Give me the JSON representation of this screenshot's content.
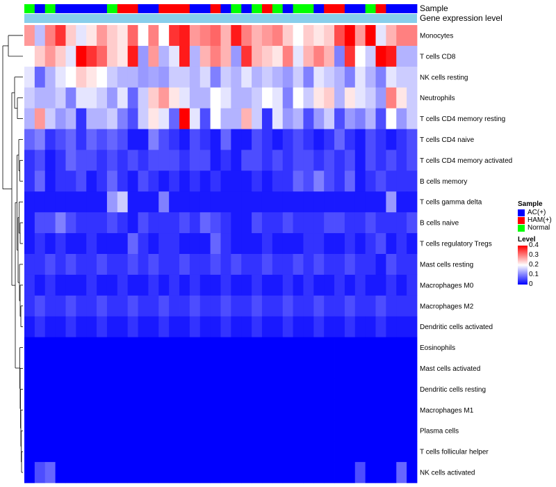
{
  "chart_data": {
    "type": "heatmap",
    "title": "",
    "annotation_tracks": [
      {
        "name": "Sample",
        "label": "Sample"
      },
      {
        "name": "Gene expression level",
        "label": "Gene expression level"
      }
    ],
    "rows": [
      "Monocytes",
      "T cells CD8",
      "NK cells resting",
      "Neutrophils",
      "T cells CD4 memory resting",
      "T cells CD4 naive",
      "T cells CD4 memory activated",
      "B cells memory",
      "T cells gamma delta",
      "B cells naive",
      "T cells regulatory  Tregs",
      "Mast cells resting",
      "Macrophages M0",
      "Macrophages M2",
      "Dendritic cells activated",
      "Eosinophils",
      "Mast cells activated",
      "Dendritic cells resting",
      "Macrophages M1",
      "Plasma cells",
      "T cells follicular helper",
      "NK cells activated"
    ],
    "sample_groups": [
      "Normal",
      "AC(+)",
      "Normal",
      "AC(+)",
      "AC(+)",
      "AC(+)",
      "AC(+)",
      "AC(+)",
      "Normal",
      "HAM(+)",
      "HAM(+)",
      "AC(+)",
      "AC(+)",
      "HAM(+)",
      "HAM(+)",
      "HAM(+)",
      "AC(+)",
      "AC(+)",
      "HAM(+)",
      "AC(+)",
      "Normal",
      "AC(+)",
      "Normal",
      "HAM(+)",
      "Normal",
      "AC(+)",
      "Normal",
      "Normal",
      "AC(+)",
      "HAM(+)",
      "HAM(+)",
      "AC(+)",
      "AC(+)",
      "Normal",
      "HAM(+)",
      "AC(+)",
      "AC(+)",
      "AC(+)"
    ],
    "values": [
      [
        0.28,
        0.15,
        0.3,
        0.36,
        0.24,
        0.18,
        0.22,
        0.28,
        0.24,
        0.22,
        0.32,
        0.2,
        0.3,
        0.2,
        0.36,
        0.38,
        0.28,
        0.3,
        0.32,
        0.26,
        0.38,
        0.3,
        0.26,
        0.28,
        0.3,
        0.24,
        0.2,
        0.24,
        0.22,
        0.24,
        0.34,
        0.4,
        0.28,
        0.4,
        0.18,
        0.26,
        0.3,
        0.3
      ],
      [
        0.2,
        0.24,
        0.28,
        0.24,
        0.18,
        0.4,
        0.36,
        0.32,
        0.24,
        0.22,
        0.38,
        0.12,
        0.28,
        0.14,
        0.18,
        0.38,
        0.14,
        0.26,
        0.3,
        0.26,
        0.12,
        0.36,
        0.26,
        0.24,
        0.22,
        0.3,
        0.18,
        0.26,
        0.3,
        0.26,
        0.1,
        0.36,
        0.2,
        0.16,
        0.4,
        0.38,
        0.14,
        0.14
      ],
      [
        0.18,
        0.08,
        0.14,
        0.18,
        0.2,
        0.24,
        0.22,
        0.2,
        0.16,
        0.14,
        0.14,
        0.12,
        0.13,
        0.12,
        0.16,
        0.16,
        0.14,
        0.17,
        0.1,
        0.16,
        0.14,
        0.18,
        0.14,
        0.16,
        0.14,
        0.12,
        0.16,
        0.1,
        0.18,
        0.16,
        0.14,
        0.1,
        0.18,
        0.14,
        0.1,
        0.18,
        0.16,
        0.16
      ],
      [
        0.16,
        0.14,
        0.14,
        0.16,
        0.1,
        0.18,
        0.18,
        0.16,
        0.12,
        0.18,
        0.08,
        0.16,
        0.24,
        0.28,
        0.22,
        0.18,
        0.14,
        0.14,
        0.2,
        0.18,
        0.14,
        0.14,
        0.16,
        0.2,
        0.18,
        0.1,
        0.2,
        0.16,
        0.22,
        0.24,
        0.14,
        0.22,
        0.18,
        0.16,
        0.12,
        0.3,
        0.22,
        0.16
      ],
      [
        0.14,
        0.28,
        0.16,
        0.12,
        0.14,
        0.04,
        0.14,
        0.14,
        0.16,
        0.1,
        0.06,
        0.16,
        0.22,
        0.18,
        0.08,
        0.4,
        0.18,
        0.06,
        0.2,
        0.14,
        0.14,
        0.26,
        0.16,
        0.04,
        0.18,
        0.12,
        0.14,
        0.06,
        0.12,
        0.16,
        0.06,
        0.12,
        0.1,
        0.14,
        0.06,
        0.2,
        0.12,
        0.16
      ],
      [
        0.08,
        0.1,
        0.04,
        0.06,
        0.08,
        0.04,
        0.08,
        0.06,
        0.08,
        0.06,
        0.02,
        0.02,
        0.1,
        0.06,
        0.04,
        0.02,
        0.06,
        0.04,
        0.02,
        0.08,
        0.02,
        0.02,
        0.06,
        0.04,
        0.02,
        0.04,
        0.06,
        0.04,
        0.02,
        0.04,
        0.08,
        0.04,
        0.02,
        0.06,
        0.04,
        0.02,
        0.04,
        0.06
      ],
      [
        0.04,
        0.06,
        0.02,
        0.04,
        0.08,
        0.06,
        0.06,
        0.04,
        0.06,
        0.04,
        0.06,
        0.04,
        0.06,
        0.06,
        0.06,
        0.04,
        0.06,
        0.06,
        0.02,
        0.04,
        0.02,
        0.06,
        0.06,
        0.04,
        0.06,
        0.04,
        0.06,
        0.06,
        0.04,
        0.06,
        0.04,
        0.06,
        0.02,
        0.06,
        0.04,
        0.06,
        0.04,
        0.06
      ],
      [
        0.04,
        0.08,
        0.02,
        0.04,
        0.04,
        0.06,
        0.02,
        0.04,
        0.08,
        0.04,
        0.02,
        0.06,
        0.04,
        0.02,
        0.04,
        0.02,
        0.04,
        0.02,
        0.04,
        0.02,
        0.02,
        0.02,
        0.04,
        0.02,
        0.04,
        0.04,
        0.08,
        0.06,
        0.1,
        0.06,
        0.04,
        0.08,
        0.02,
        0.04,
        0.06,
        0.04,
        0.04,
        0.04
      ],
      [
        0.02,
        0.02,
        0.02,
        0.02,
        0.02,
        0.02,
        0.02,
        0.02,
        0.12,
        0.16,
        0.02,
        0.02,
        0.02,
        0.1,
        0.02,
        0.02,
        0.02,
        0.02,
        0.02,
        0.02,
        0.02,
        0.02,
        0.02,
        0.02,
        0.02,
        0.02,
        0.02,
        0.02,
        0.02,
        0.02,
        0.02,
        0.02,
        0.02,
        0.02,
        0.02,
        0.12,
        0.02,
        0.02
      ],
      [
        0.02,
        0.06,
        0.06,
        0.1,
        0.06,
        0.04,
        0.04,
        0.04,
        0.06,
        0.04,
        0.02,
        0.06,
        0.04,
        0.04,
        0.04,
        0.06,
        0.04,
        0.08,
        0.06,
        0.04,
        0.02,
        0.02,
        0.06,
        0.04,
        0.04,
        0.06,
        0.04,
        0.04,
        0.04,
        0.06,
        0.06,
        0.04,
        0.04,
        0.06,
        0.04,
        0.04,
        0.04,
        0.06
      ],
      [
        0.02,
        0.04,
        0.02,
        0.04,
        0.02,
        0.02,
        0.04,
        0.02,
        0.02,
        0.02,
        0.08,
        0.04,
        0.02,
        0.04,
        0.04,
        0.02,
        0.02,
        0.02,
        0.08,
        0.04,
        0.02,
        0.02,
        0.02,
        0.04,
        0.02,
        0.02,
        0.02,
        0.04,
        0.04,
        0.02,
        0.02,
        0.04,
        0.02,
        0.04,
        0.06,
        0.02,
        0.04,
        0.02
      ],
      [
        0.04,
        0.04,
        0.06,
        0.04,
        0.06,
        0.04,
        0.04,
        0.06,
        0.04,
        0.04,
        0.06,
        0.04,
        0.06,
        0.04,
        0.04,
        0.06,
        0.04,
        0.04,
        0.06,
        0.04,
        0.06,
        0.04,
        0.04,
        0.06,
        0.04,
        0.04,
        0.06,
        0.04,
        0.06,
        0.04,
        0.04,
        0.06,
        0.04,
        0.04,
        0.02,
        0.06,
        0.04,
        0.04
      ],
      [
        0.04,
        0.02,
        0.04,
        0.02,
        0.02,
        0.02,
        0.04,
        0.02,
        0.02,
        0.04,
        0.02,
        0.02,
        0.04,
        0.02,
        0.04,
        0.02,
        0.04,
        0.02,
        0.02,
        0.04,
        0.02,
        0.02,
        0.04,
        0.02,
        0.02,
        0.04,
        0.02,
        0.04,
        0.02,
        0.02,
        0.04,
        0.02,
        0.04,
        0.02,
        0.02,
        0.04,
        0.02,
        0.04
      ],
      [
        0.04,
        0.06,
        0.04,
        0.04,
        0.06,
        0.04,
        0.04,
        0.06,
        0.04,
        0.04,
        0.06,
        0.04,
        0.04,
        0.06,
        0.04,
        0.04,
        0.06,
        0.04,
        0.04,
        0.06,
        0.04,
        0.04,
        0.06,
        0.04,
        0.04,
        0.06,
        0.04,
        0.04,
        0.06,
        0.04,
        0.04,
        0.06,
        0.04,
        0.04,
        0.06,
        0.04,
        0.04,
        0.04
      ],
      [
        0.02,
        0.04,
        0.02,
        0.02,
        0.04,
        0.02,
        0.02,
        0.04,
        0.02,
        0.02,
        0.04,
        0.02,
        0.02,
        0.04,
        0.02,
        0.02,
        0.04,
        0.02,
        0.02,
        0.04,
        0.02,
        0.02,
        0.04,
        0.02,
        0.02,
        0.04,
        0.02,
        0.02,
        0.04,
        0.02,
        0.02,
        0.04,
        0.02,
        0.02,
        0.04,
        0.02,
        0.02,
        0.02
      ],
      [
        0.0,
        0.0,
        0.0,
        0.0,
        0.0,
        0.0,
        0.0,
        0.0,
        0.0,
        0.0,
        0.0,
        0.0,
        0.0,
        0.0,
        0.0,
        0.0,
        0.0,
        0.0,
        0.0,
        0.0,
        0.0,
        0.0,
        0.0,
        0.0,
        0.0,
        0.0,
        0.0,
        0.0,
        0.0,
        0.0,
        0.0,
        0.0,
        0.0,
        0.0,
        0.0,
        0.0,
        0.0,
        0.0
      ],
      [
        0.0,
        0.0,
        0.0,
        0.0,
        0.0,
        0.0,
        0.0,
        0.0,
        0.0,
        0.0,
        0.0,
        0.0,
        0.0,
        0.0,
        0.0,
        0.0,
        0.0,
        0.0,
        0.0,
        0.0,
        0.0,
        0.0,
        0.0,
        0.0,
        0.0,
        0.0,
        0.0,
        0.0,
        0.0,
        0.0,
        0.0,
        0.0,
        0.0,
        0.0,
        0.0,
        0.0,
        0.0,
        0.0
      ],
      [
        0.0,
        0.0,
        0.0,
        0.0,
        0.0,
        0.0,
        0.0,
        0.0,
        0.0,
        0.0,
        0.0,
        0.0,
        0.0,
        0.0,
        0.0,
        0.0,
        0.0,
        0.0,
        0.0,
        0.0,
        0.0,
        0.0,
        0.0,
        0.0,
        0.0,
        0.0,
        0.0,
        0.0,
        0.0,
        0.0,
        0.0,
        0.0,
        0.0,
        0.0,
        0.0,
        0.0,
        0.0,
        0.0
      ],
      [
        0.0,
        0.0,
        0.0,
        0.0,
        0.0,
        0.0,
        0.0,
        0.0,
        0.0,
        0.0,
        0.0,
        0.0,
        0.0,
        0.0,
        0.0,
        0.0,
        0.0,
        0.0,
        0.0,
        0.0,
        0.0,
        0.0,
        0.0,
        0.0,
        0.0,
        0.0,
        0.0,
        0.0,
        0.0,
        0.0,
        0.0,
        0.0,
        0.0,
        0.0,
        0.0,
        0.0,
        0.0,
        0.0
      ],
      [
        0.0,
        0.0,
        0.0,
        0.0,
        0.0,
        0.0,
        0.0,
        0.0,
        0.0,
        0.0,
        0.0,
        0.0,
        0.0,
        0.0,
        0.0,
        0.0,
        0.0,
        0.0,
        0.0,
        0.0,
        0.0,
        0.0,
        0.0,
        0.0,
        0.0,
        0.0,
        0.0,
        0.0,
        0.0,
        0.0,
        0.0,
        0.0,
        0.0,
        0.0,
        0.0,
        0.0,
        0.0,
        0.0
      ],
      [
        0.0,
        0.0,
        0.0,
        0.0,
        0.0,
        0.0,
        0.0,
        0.0,
        0.0,
        0.0,
        0.0,
        0.0,
        0.0,
        0.0,
        0.0,
        0.0,
        0.0,
        0.0,
        0.0,
        0.0,
        0.0,
        0.0,
        0.0,
        0.0,
        0.0,
        0.0,
        0.0,
        0.0,
        0.0,
        0.0,
        0.0,
        0.0,
        0.0,
        0.0,
        0.0,
        0.0,
        0.0,
        0.0
      ],
      [
        0.0,
        0.06,
        0.08,
        0.0,
        0.0,
        0.0,
        0.0,
        0.0,
        0.0,
        0.0,
        0.0,
        0.0,
        0.0,
        0.0,
        0.0,
        0.0,
        0.0,
        0.0,
        0.0,
        0.0,
        0.0,
        0.0,
        0.0,
        0.0,
        0.0,
        0.0,
        0.0,
        0.0,
        0.0,
        0.0,
        0.0,
        0.0,
        0.06,
        0.0,
        0.0,
        0.0,
        0.08,
        0.0
      ]
    ],
    "color_scale": {
      "min": 0,
      "max": 0.4,
      "low": "#0000ff",
      "mid": "#ffffff",
      "high": "#ff0000"
    },
    "gene_expression_color": "#87ceeb",
    "legend": {
      "sample_title": "Sample",
      "sample_items": [
        {
          "label": "AC(+)",
          "color": "#0000ff"
        },
        {
          "label": "HAM(+)",
          "color": "#ff0000"
        },
        {
          "label": "Normal",
          "color": "#00ff00"
        }
      ],
      "level_title": "Level",
      "level_ticks": [
        "0.4",
        "0.3",
        "0.2",
        "0.1",
        "0"
      ],
      "placement": "right"
    }
  }
}
